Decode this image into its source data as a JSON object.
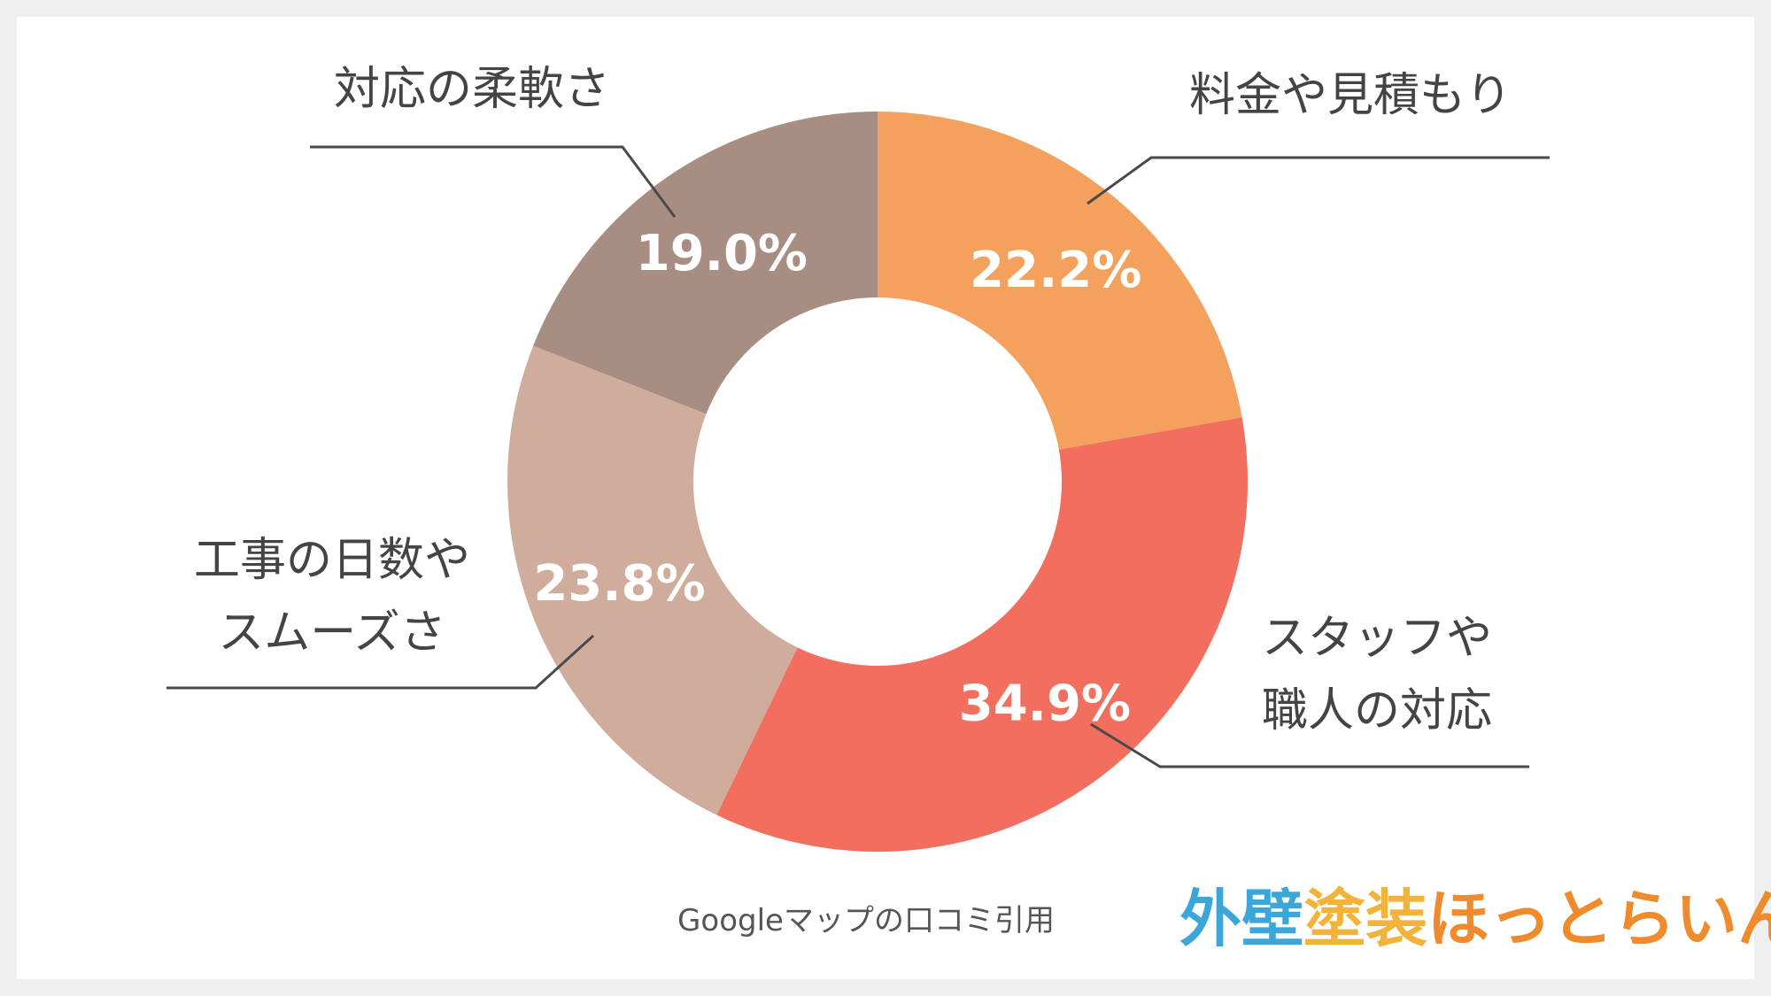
{
  "chart_data": {
    "type": "pie",
    "variant": "donut",
    "categories": [
      "料金や見積もり",
      "スタッフや\n職人の対応",
      "工事の日数や\nスムーズさ",
      "対応の柔軟さ"
    ],
    "values": [
      22.2,
      34.9,
      23.8,
      19.0
    ],
    "value_labels": [
      "22.2%",
      "34.9%",
      "23.8%",
      "19.0%"
    ],
    "colors": [
      "#f3a15d",
      "#f26f60",
      "#d0ac9d",
      "#a88e82"
    ],
    "label_lines": [
      [
        "料金や見積もり"
      ],
      [
        "スタッフや",
        "職人の対応"
      ],
      [
        "工事の日数や",
        "スムーズさ"
      ],
      [
        "対応の柔軟さ"
      ]
    ]
  },
  "source_note": "Googleマップの口コミ引用",
  "logo": {
    "text": "外壁塗装ほっとらいん",
    "parts": [
      "外壁",
      "塗装",
      "ほっとらいん"
    ],
    "colors": [
      "#3aa7d8",
      "#f2b33a",
      "#ef8a2d"
    ]
  }
}
